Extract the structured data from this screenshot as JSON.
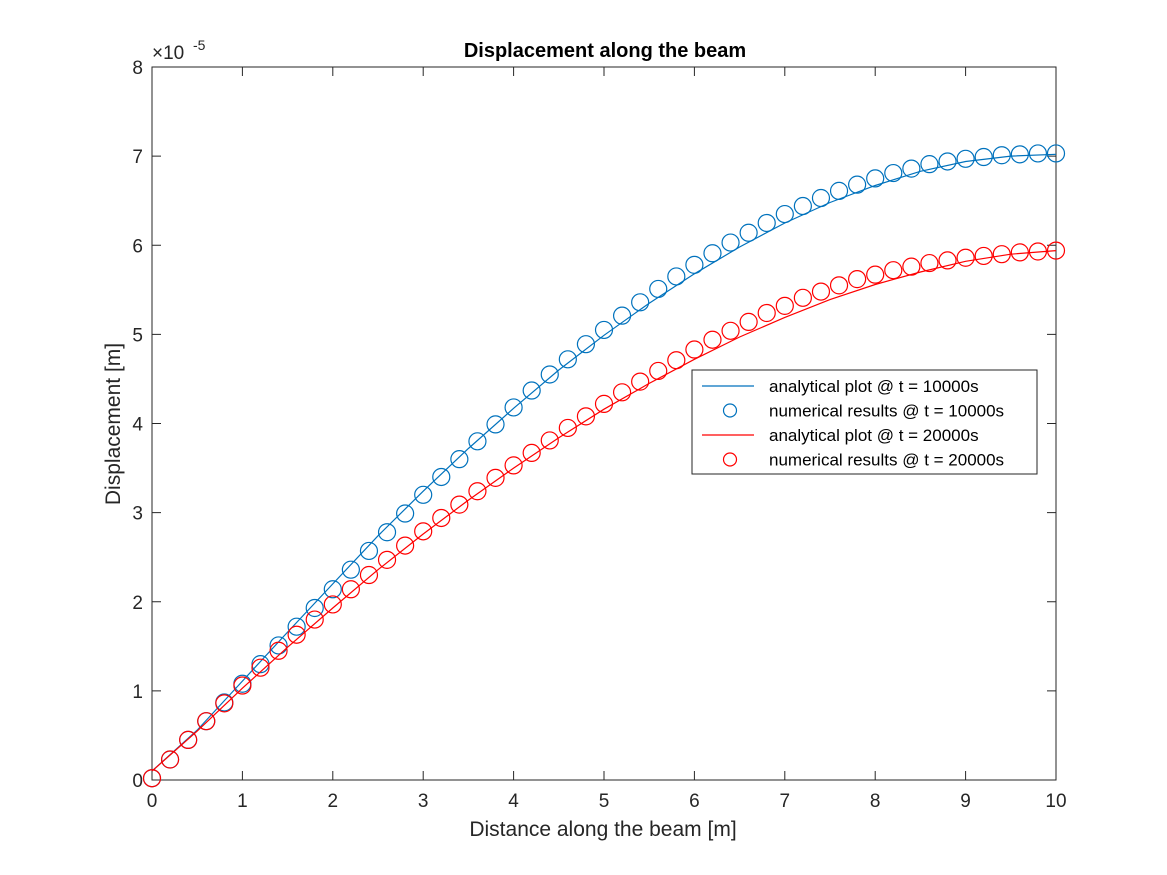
{
  "chart_data": {
    "type": "line",
    "title": "Displacement along the beam",
    "xlabel": "Distance along the beam [m]",
    "ylabel": "Displacement [m]",
    "xlim": [
      0,
      10
    ],
    "ylim": [
      0,
      8e-05
    ],
    "y_exponent_label": "×10",
    "y_exponent": "-5",
    "x_ticks": [
      "0",
      "1",
      "2",
      "3",
      "4",
      "5",
      "6",
      "7",
      "8",
      "9",
      "10"
    ],
    "y_ticks": [
      "0",
      "1",
      "2",
      "3",
      "4",
      "5",
      "6",
      "7",
      "8"
    ],
    "grid": false,
    "legend_position": "right",
    "series": [
      {
        "name": "analytical plot @ t = 10000s",
        "style": "line",
        "color": "#0072BD",
        "x": [
          0,
          0.5,
          1,
          1.5,
          2,
          2.5,
          3,
          3.5,
          4,
          4.5,
          5,
          5.5,
          6,
          6.5,
          7,
          7.5,
          8,
          8.5,
          9,
          9.5,
          10
        ],
        "y": [
          1e-06,
          5.6e-06,
          1.11e-05,
          1.66e-05,
          2.2e-05,
          2.74e-05,
          3.24e-05,
          3.72e-05,
          4.17e-05,
          4.6e-05,
          4.99e-05,
          5.35e-05,
          5.68e-05,
          5.98e-05,
          6.25e-05,
          6.48e-05,
          6.67e-05,
          6.83e-05,
          6.94e-05,
          7e-05,
          7.02e-05
        ]
      },
      {
        "name": "numerical results @ t = 10000s",
        "style": "marker",
        "color": "#0072BD",
        "x": [
          0,
          0.2,
          0.4,
          0.6,
          0.8,
          1.0,
          1.2,
          1.4,
          1.6,
          1.8,
          2.0,
          2.2,
          2.4,
          2.6,
          2.8,
          3.0,
          3.2,
          3.4,
          3.6,
          3.8,
          4.0,
          4.2,
          4.4,
          4.6,
          4.8,
          5.0,
          5.2,
          5.4,
          5.6,
          5.8,
          6.0,
          6.2,
          6.4,
          6.6,
          6.8,
          7.0,
          7.2,
          7.4,
          7.6,
          7.8,
          8.0,
          8.2,
          8.4,
          8.6,
          8.8,
          9.0,
          9.2,
          9.4,
          9.6,
          9.8,
          10.0
        ],
        "y": [
          2e-07,
          2.3e-06,
          4.5e-06,
          6.6e-06,
          8.7e-06,
          1.08e-05,
          1.3e-05,
          1.51e-05,
          1.72e-05,
          1.93e-05,
          2.14e-05,
          2.36e-05,
          2.57e-05,
          2.78e-05,
          2.99e-05,
          3.2e-05,
          3.4e-05,
          3.6e-05,
          3.8e-05,
          3.99e-05,
          4.18e-05,
          4.37e-05,
          4.55e-05,
          4.72e-05,
          4.89e-05,
          5.05e-05,
          5.21e-05,
          5.36e-05,
          5.51e-05,
          5.65e-05,
          5.78e-05,
          5.91e-05,
          6.03e-05,
          6.14e-05,
          6.25e-05,
          6.35e-05,
          6.44e-05,
          6.53e-05,
          6.61e-05,
          6.68e-05,
          6.75e-05,
          6.81e-05,
          6.86e-05,
          6.91e-05,
          6.94e-05,
          6.97e-05,
          6.99e-05,
          7.01e-05,
          7.02e-05,
          7.03e-05,
          7.03e-05
        ]
      },
      {
        "name": "analytical plot @ t = 20000s",
        "style": "line",
        "color": "#FF0000",
        "x": [
          0,
          0.5,
          1,
          1.5,
          2,
          2.5,
          3,
          3.5,
          4,
          4.5,
          5,
          5.5,
          6,
          6.5,
          7,
          7.5,
          8,
          8.5,
          9,
          9.5,
          10
        ],
        "y": [
          1e-06,
          5.5e-06,
          1.03e-05,
          1.49e-05,
          1.93e-05,
          2.36e-05,
          2.76e-05,
          3.14e-05,
          3.5e-05,
          3.84e-05,
          4.16e-05,
          4.45e-05,
          4.72e-05,
          4.97e-05,
          5.19e-05,
          5.39e-05,
          5.56e-05,
          5.7e-05,
          5.82e-05,
          5.9e-05,
          5.94e-05
        ]
      },
      {
        "name": "numerical results @ t = 20000s",
        "style": "marker",
        "color": "#FF0000",
        "x": [
          0,
          0.2,
          0.4,
          0.6,
          0.8,
          1.0,
          1.2,
          1.4,
          1.6,
          1.8,
          2.0,
          2.2,
          2.4,
          2.6,
          2.8,
          3.0,
          3.2,
          3.4,
          3.6,
          3.8,
          4.0,
          4.2,
          4.4,
          4.6,
          4.8,
          5.0,
          5.2,
          5.4,
          5.6,
          5.8,
          6.0,
          6.2,
          6.4,
          6.6,
          6.8,
          7.0,
          7.2,
          7.4,
          7.6,
          7.8,
          8.0,
          8.2,
          8.4,
          8.6,
          8.8,
          9.0,
          9.2,
          9.4,
          9.6,
          9.8,
          10.0
        ],
        "y": [
          2e-07,
          2.3e-06,
          4.5e-06,
          6.6e-06,
          8.6e-06,
          1.06e-05,
          1.26e-05,
          1.45e-05,
          1.63e-05,
          1.8e-05,
          1.97e-05,
          2.14e-05,
          2.3e-05,
          2.47e-05,
          2.63e-05,
          2.79e-05,
          2.94e-05,
          3.09e-05,
          3.24e-05,
          3.39e-05,
          3.53e-05,
          3.67e-05,
          3.81e-05,
          3.95e-05,
          4.08e-05,
          4.22e-05,
          4.35e-05,
          4.47e-05,
          4.59e-05,
          4.71e-05,
          4.83e-05,
          4.94e-05,
          5.04e-05,
          5.14e-05,
          5.24e-05,
          5.32e-05,
          5.41e-05,
          5.48e-05,
          5.55e-05,
          5.62e-05,
          5.67e-05,
          5.72e-05,
          5.76e-05,
          5.8e-05,
          5.83e-05,
          5.86e-05,
          5.88e-05,
          5.9e-05,
          5.92e-05,
          5.93e-05,
          5.94e-05
        ]
      }
    ]
  }
}
